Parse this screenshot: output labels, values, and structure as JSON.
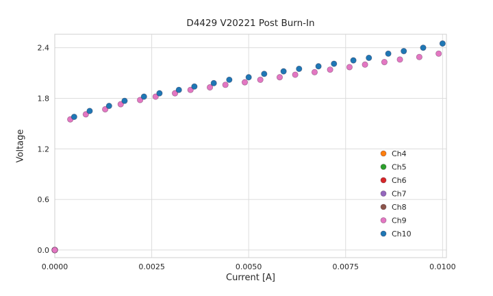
{
  "chart_data": {
    "type": "scatter",
    "title": "D4429 V20221 Post Burn-In",
    "xlabel": "Current [A]",
    "ylabel": "Voltage",
    "xlim": [
      0,
      0.0101
    ],
    "ylim": [
      -0.09,
      2.56
    ],
    "grid": true,
    "legend_position": "lower right",
    "xticks": [
      0.0,
      0.0025,
      0.005,
      0.0075,
      0.01
    ],
    "xtick_labels": [
      "0.0000",
      "0.0025",
      "0.0050",
      "0.0075",
      "0.0100"
    ],
    "yticks": [
      0.0,
      0.6,
      1.2,
      1.8,
      2.4
    ],
    "ytick_labels": [
      "0.0",
      "0.6",
      "1.2",
      "1.8",
      "2.4"
    ],
    "series": [
      {
        "name": "Ch4",
        "color": "#ff7f0e",
        "points": [
          [
            0.0,
            0.0
          ]
        ]
      },
      {
        "name": "Ch5",
        "color": "#2ca02c",
        "points": [
          [
            0.0,
            0.0
          ]
        ]
      },
      {
        "name": "Ch6",
        "color": "#d62728",
        "points": [
          [
            0.0,
            0.0
          ]
        ]
      },
      {
        "name": "Ch7",
        "color": "#9467bd",
        "points": [
          [
            0.0,
            0.0
          ]
        ]
      },
      {
        "name": "Ch8",
        "color": "#8c564b",
        "points": [
          [
            0.0,
            0.0
          ]
        ]
      },
      {
        "name": "Ch9",
        "color": "#e377c2",
        "points": [
          [
            0.0,
            0.0
          ],
          [
            0.0004,
            1.55
          ],
          [
            0.0008,
            1.61
          ],
          [
            0.0013,
            1.67
          ],
          [
            0.0017,
            1.73
          ],
          [
            0.0022,
            1.78
          ],
          [
            0.0026,
            1.82
          ],
          [
            0.0031,
            1.86
          ],
          [
            0.0035,
            1.9
          ],
          [
            0.004,
            1.93
          ],
          [
            0.0044,
            1.96
          ],
          [
            0.0049,
            1.99
          ],
          [
            0.0053,
            2.02
          ],
          [
            0.0058,
            2.05
          ],
          [
            0.0062,
            2.08
          ],
          [
            0.0067,
            2.11
          ],
          [
            0.0071,
            2.14
          ],
          [
            0.0076,
            2.17
          ],
          [
            0.008,
            2.2
          ],
          [
            0.0085,
            2.23
          ],
          [
            0.0089,
            2.26
          ],
          [
            0.0094,
            2.29
          ],
          [
            0.0099,
            2.33
          ]
        ]
      },
      {
        "name": "Ch10",
        "color": "#1f77b4",
        "points": [
          [
            0.0005,
            1.58
          ],
          [
            0.0009,
            1.65
          ],
          [
            0.0014,
            1.71
          ],
          [
            0.0018,
            1.77
          ],
          [
            0.0023,
            1.82
          ],
          [
            0.0027,
            1.86
          ],
          [
            0.0032,
            1.9
          ],
          [
            0.0036,
            1.94
          ],
          [
            0.0041,
            1.98
          ],
          [
            0.0045,
            2.02
          ],
          [
            0.005,
            2.05
          ],
          [
            0.0054,
            2.09
          ],
          [
            0.0059,
            2.12
          ],
          [
            0.0063,
            2.15
          ],
          [
            0.0068,
            2.18
          ],
          [
            0.0072,
            2.21
          ],
          [
            0.0077,
            2.25
          ],
          [
            0.0081,
            2.28
          ],
          [
            0.0086,
            2.33
          ],
          [
            0.009,
            2.36
          ],
          [
            0.0095,
            2.4
          ],
          [
            0.01,
            2.45
          ]
        ]
      }
    ]
  }
}
